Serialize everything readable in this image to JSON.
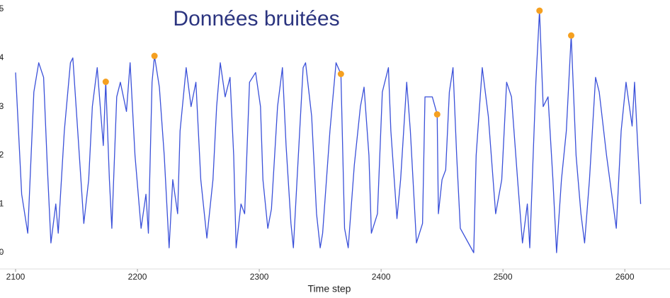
{
  "chart_data": {
    "type": "line",
    "title": "Données bruitées",
    "xlabel": "Time step",
    "xlim": [
      2100,
      2615
    ],
    "xticks": [
      2100,
      2200,
      2300,
      2400,
      2500,
      2600
    ],
    "ylim": [
      0,
      5
    ],
    "yticks": [
      0,
      1,
      2,
      3,
      4,
      5
    ],
    "color": "#3a50d9",
    "x": [
      2100,
      2105,
      2110,
      2115,
      2119,
      2123,
      2126,
      2129,
      2133,
      2135,
      2140,
      2145,
      2147,
      2151,
      2156,
      2160,
      2163,
      2167,
      2172,
      2174,
      2177,
      2179,
      2183,
      2186,
      2191,
      2194,
      2198,
      2203,
      2207,
      2209,
      2212,
      2214,
      2218,
      2222,
      2226,
      2229,
      2233,
      2235,
      2240,
      2244,
      2248,
      2252,
      2257,
      2262,
      2265,
      2268,
      2272,
      2276,
      2279,
      2281,
      2285,
      2288,
      2292,
      2297,
      2301,
      2303,
      2307,
      2310,
      2315,
      2319,
      2322,
      2326,
      2328,
      2331,
      2336,
      2338,
      2343,
      2347,
      2350,
      2352,
      2358,
      2363,
      2367,
      2370,
      2373,
      2378,
      2383,
      2386,
      2390,
      2392,
      2397,
      2401,
      2406,
      2408,
      2413,
      2416,
      2421,
      2424,
      2429,
      2434,
      2436,
      2442,
      2446,
      2447,
      2450,
      2453,
      2456,
      2459,
      2462,
      2465,
      2476,
      2478,
      2483,
      2488,
      2494,
      2499,
      2503,
      2507,
      2512,
      2516,
      2520,
      2522,
      2527,
      2530,
      2533,
      2537,
      2541,
      2544,
      2548,
      2552,
      2556,
      2560,
      2564,
      2567,
      2571,
      2576,
      2579,
      2585,
      2593,
      2597,
      2601,
      2606,
      2608,
      2613
    ],
    "values": [
      3.7,
      1.2,
      0.4,
      3.3,
      3.9,
      3.6,
      1.8,
      0.2,
      1.0,
      0.4,
      2.5,
      3.9,
      4.0,
      2.5,
      0.6,
      1.5,
      3.0,
      3.8,
      2.2,
      3.51,
      1.5,
      0.5,
      3.2,
      3.5,
      2.9,
      3.9,
      2.0,
      0.5,
      1.2,
      0.4,
      3.5,
      4.04,
      3.4,
      2.0,
      0.1,
      1.5,
      0.8,
      2.5,
      3.8,
      3.0,
      3.5,
      1.5,
      0.3,
      1.5,
      3.0,
      3.9,
      3.2,
      3.6,
      2.0,
      0.1,
      1.0,
      0.8,
      3.5,
      3.7,
      3.0,
      1.5,
      0.5,
      0.9,
      3.0,
      3.8,
      2.2,
      0.6,
      0.1,
      1.5,
      3.8,
      3.9,
      2.8,
      0.8,
      0.1,
      0.4,
      2.5,
      3.9,
      3.67,
      0.5,
      0.1,
      1.8,
      3.0,
      3.4,
      2.0,
      0.4,
      0.8,
      3.3,
      3.8,
      2.5,
      0.7,
      1.5,
      3.5,
      2.5,
      0.2,
      0.6,
      3.2,
      3.2,
      2.84,
      0.8,
      1.5,
      1.7,
      3.3,
      3.8,
      2.0,
      0.5,
      0.0,
      2.0,
      3.8,
      2.8,
      0.8,
      1.5,
      3.5,
      3.2,
      1.5,
      0.2,
      1.0,
      0.1,
      3.5,
      4.97,
      3.0,
      3.2,
      1.5,
      0.0,
      1.5,
      2.5,
      4.46,
      2.0,
      0.8,
      0.2,
      1.5,
      3.6,
      3.3,
      2.0,
      0.5,
      2.5,
      3.5,
      2.6,
      3.5,
      1.0
    ],
    "points": {
      "color": "#f5a020",
      "x": [
        2174,
        2214,
        2367,
        2446,
        2530,
        2556
      ],
      "values": [
        3.51,
        4.04,
        3.67,
        2.84,
        4.97,
        4.46
      ]
    }
  }
}
